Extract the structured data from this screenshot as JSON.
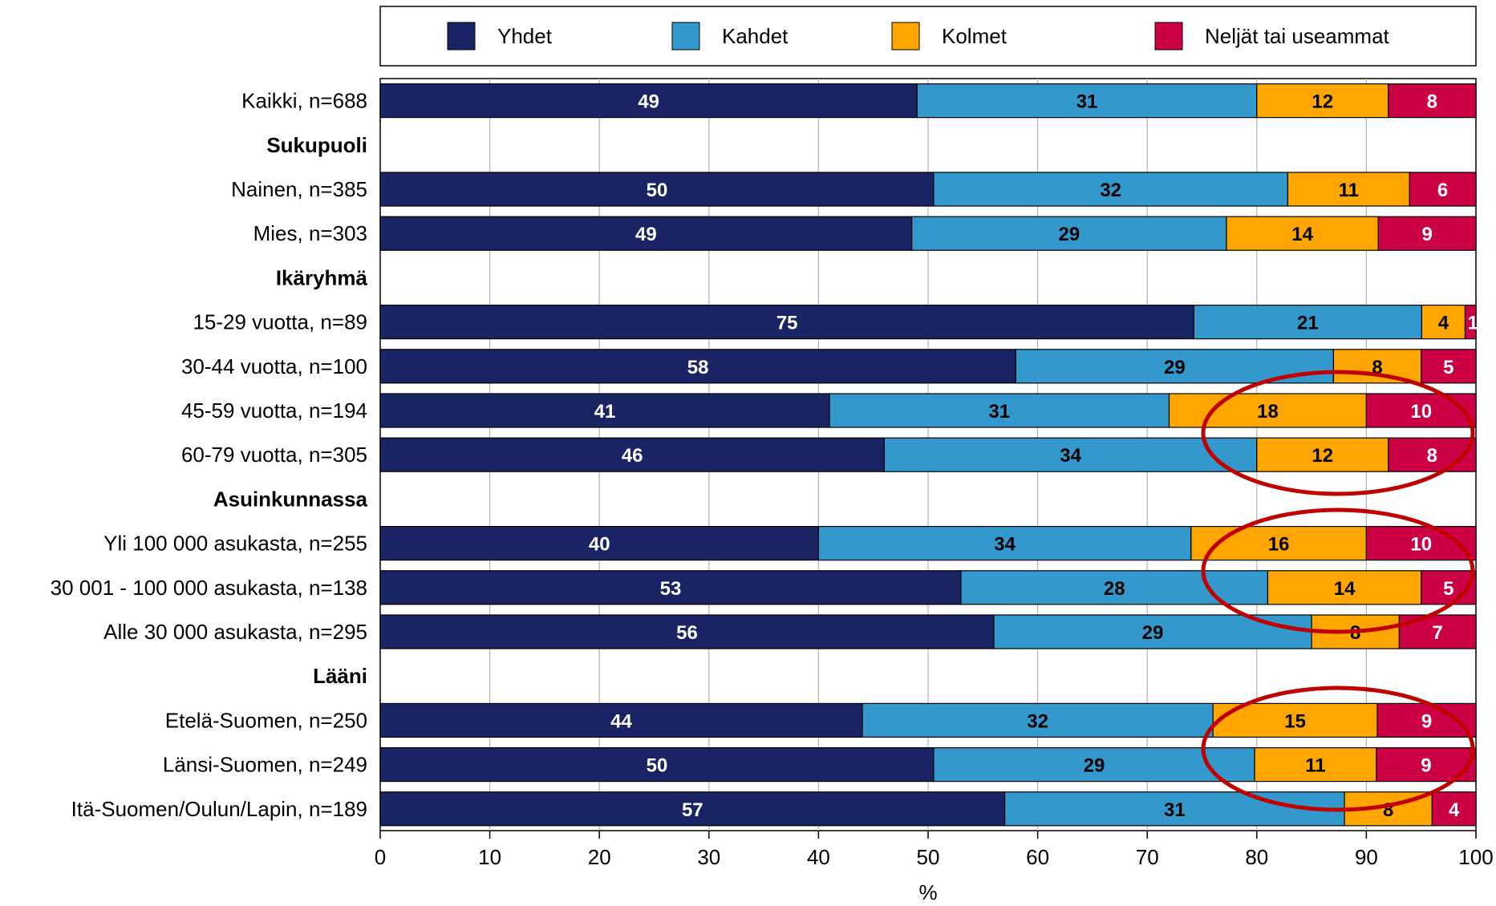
{
  "chart_data": {
    "type": "bar",
    "orientation": "horizontal",
    "stacked": true,
    "xlabel": "%",
    "xlim": [
      0,
      100
    ],
    "xticks": [
      "0",
      "10",
      "20",
      "30",
      "40",
      "50",
      "60",
      "70",
      "80",
      "90",
      "100"
    ],
    "grid": "vertical",
    "legend_position": "top",
    "series": [
      {
        "name": "Yhdet",
        "color": "#1a2464"
      },
      {
        "name": "Kahdet",
        "color": "#3399cc"
      },
      {
        "name": "Kolmet",
        "color": "#ffa500"
      },
      {
        "name": "Neljät tai useammat",
        "color": "#cc0044"
      }
    ],
    "rows": [
      {
        "label": "Kaikki, n=688",
        "values": [
          49,
          31,
          12,
          8
        ]
      },
      {
        "label": "Sukupuoli",
        "group": true
      },
      {
        "label": "Nainen, n=385",
        "values": [
          50,
          32,
          11,
          6
        ]
      },
      {
        "label": "Mies, n=303",
        "values": [
          49,
          29,
          14,
          9
        ]
      },
      {
        "label": "Ikäryhmä",
        "group": true
      },
      {
        "label": "15-29 vuotta, n=89",
        "values": [
          75,
          21,
          4,
          1
        ]
      },
      {
        "label": "30-44 vuotta, n=100",
        "values": [
          58,
          29,
          8,
          5
        ]
      },
      {
        "label": "45-59 vuotta, n=194",
        "values": [
          41,
          31,
          18,
          10
        ]
      },
      {
        "label": "60-79 vuotta, n=305",
        "values": [
          46,
          34,
          12,
          8
        ]
      },
      {
        "label": "Asuinkunnassa",
        "group": true
      },
      {
        "label": "Yli 100 000 asukasta, n=255",
        "values": [
          40,
          34,
          16,
          10
        ]
      },
      {
        "label": "30 001 - 100 000 asukasta, n=138",
        "values": [
          53,
          28,
          14,
          5
        ]
      },
      {
        "label": "Alle 30 000 asukasta, n=295",
        "values": [
          56,
          29,
          8,
          7
        ]
      },
      {
        "label": "Lääni",
        "group": true
      },
      {
        "label": "Etelä-Suomen, n=250",
        "values": [
          44,
          32,
          15,
          9
        ]
      },
      {
        "label": "Länsi-Suomen, n=249",
        "values": [
          50,
          29,
          11,
          9
        ]
      },
      {
        "label": "Itä-Suomen/Oulun/Lapin, n=189",
        "values": [
          57,
          31,
          8,
          4
        ]
      }
    ],
    "highlight_color": "#c00000"
  }
}
